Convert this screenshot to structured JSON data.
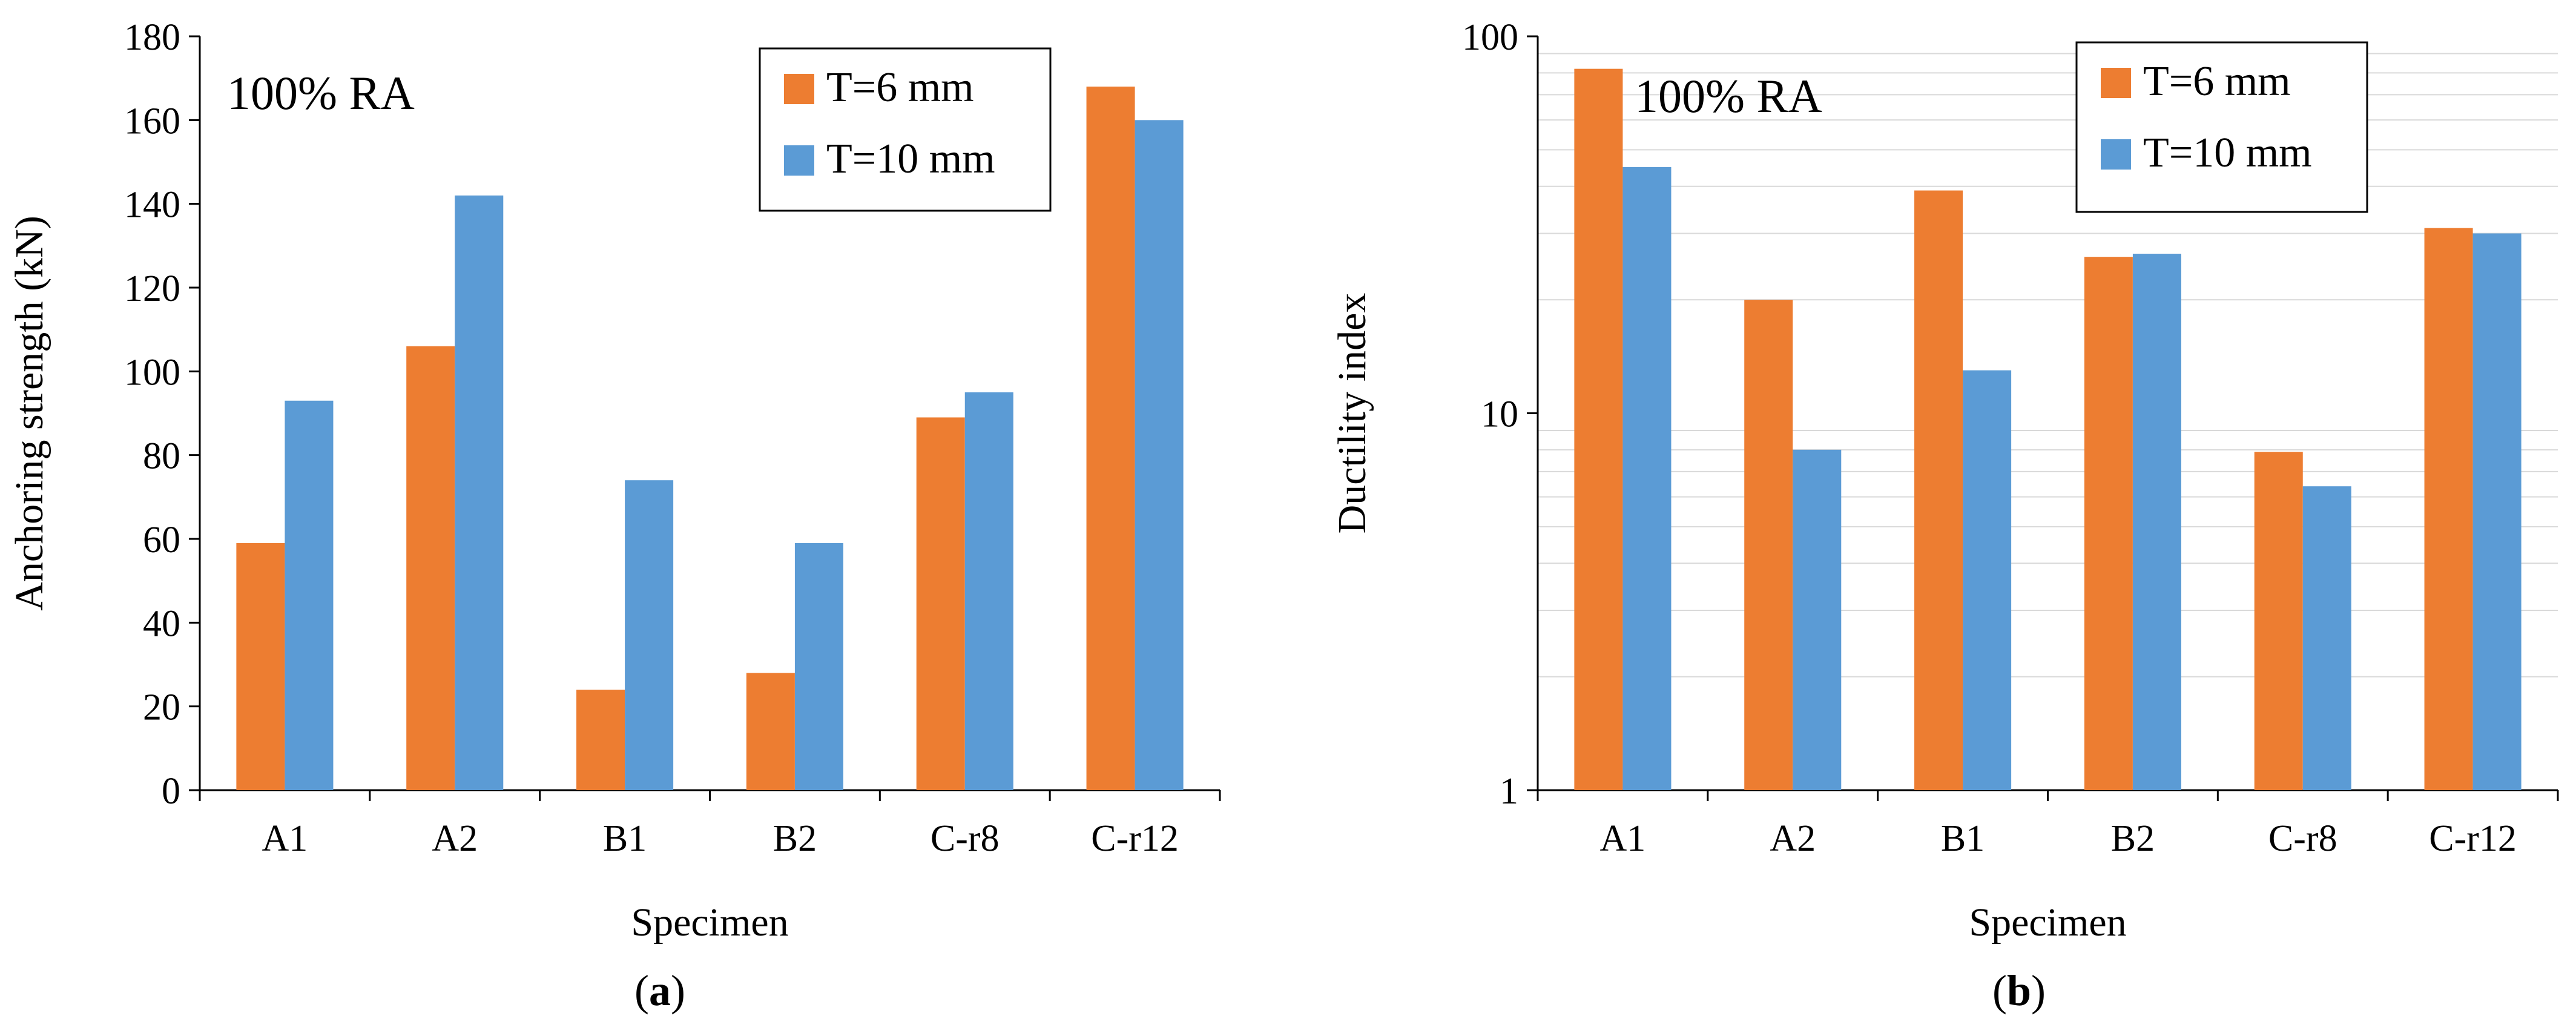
{
  "colors": {
    "t6": "#ED7D31",
    "t10": "#5B9BD5",
    "axis": "#000000",
    "grid": "#D9D9D9"
  },
  "chart_data": [
    {
      "type": "bar",
      "panel": "a",
      "caption": {
        "open": "(",
        "letter": "a",
        "close": ")"
      },
      "annotation": "100% RA",
      "xlabel": "Specimen",
      "ylabel": "Anchoring strength (kN)",
      "ylim": [
        0,
        180
      ],
      "yticks": [
        "0",
        "20",
        "40",
        "60",
        "80",
        "100",
        "120",
        "140",
        "160",
        "180"
      ],
      "yscale": "linear",
      "legend_position": "top-right",
      "categories": [
        "A1",
        "A2",
        "B1",
        "B2",
        "C-r8",
        "C-r12"
      ],
      "series": [
        {
          "name": "T=6 mm",
          "values": [
            59,
            106,
            24,
            28,
            89,
            168
          ]
        },
        {
          "name": "T=10 mm",
          "values": [
            93,
            142,
            74,
            59,
            95,
            160
          ]
        }
      ]
    },
    {
      "type": "bar",
      "panel": "b",
      "caption": {
        "open": "(",
        "letter": "b",
        "close": ")"
      },
      "annotation": "100% RA",
      "xlabel": "Specimen",
      "ylabel": "Ductility index",
      "ylim": [
        1,
        100
      ],
      "yticks": [
        "1",
        "10",
        "100"
      ],
      "yscale": "log",
      "legend_position": "top-right",
      "categories": [
        "A1",
        "A2",
        "B1",
        "B2",
        "C-r8",
        "C-r12"
      ],
      "series": [
        {
          "name": "T=6 mm",
          "values": [
            82,
            20,
            39,
            26,
            7.9,
            31
          ]
        },
        {
          "name": "T=10 mm",
          "values": [
            45,
            8,
            13,
            26.5,
            6.4,
            30
          ]
        }
      ]
    }
  ]
}
